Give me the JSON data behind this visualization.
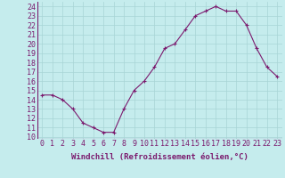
{
  "x": [
    0,
    1,
    2,
    3,
    4,
    5,
    6,
    7,
    8,
    9,
    10,
    11,
    12,
    13,
    14,
    15,
    16,
    17,
    18,
    19,
    20,
    21,
    22,
    23
  ],
  "y": [
    14.5,
    14.5,
    14.0,
    13.0,
    11.5,
    11.0,
    10.5,
    10.5,
    13.0,
    15.0,
    16.0,
    17.5,
    19.5,
    20.0,
    21.5,
    23.0,
    23.5,
    24.0,
    23.5,
    23.5,
    22.0,
    19.5,
    17.5,
    16.5
  ],
  "line_color": "#7b1a6e",
  "marker": "+",
  "marker_size": 3,
  "marker_lw": 0.8,
  "bg_color": "#c5eced",
  "grid_color": "#a8d5d6",
  "xlabel": "Windchill (Refroidissement éolien,°C)",
  "ylabel_ticks": [
    10,
    11,
    12,
    13,
    14,
    15,
    16,
    17,
    18,
    19,
    20,
    21,
    22,
    23,
    24
  ],
  "ylim": [
    9.8,
    24.5
  ],
  "xlim": [
    -0.5,
    23.5
  ],
  "xlabel_fontsize": 6.5,
  "tick_fontsize": 6,
  "tick_color": "#7b1a6e",
  "line_width": 0.8
}
